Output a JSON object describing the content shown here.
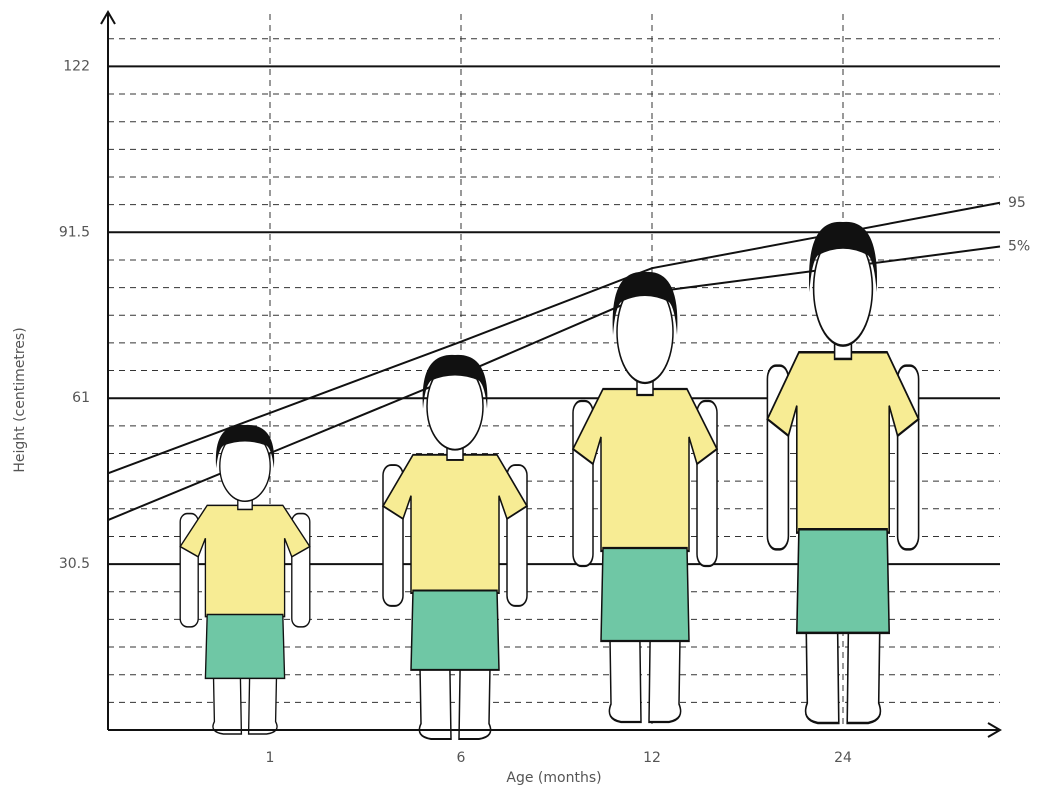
{
  "chart_data": {
    "type": "line",
    "x_label": "Age (months)",
    "y_label": "Height (centimetres)",
    "categories": [
      "1",
      "6",
      "12",
      "24"
    ],
    "series": [
      {
        "name": "95",
        "color": "#111111",
        "values": [
          58.3,
          71.4,
          84.9,
          91.5
        ]
      },
      {
        "name": "5%",
        "color": "#111111",
        "values": [
          50.9,
          65.4,
          80.5,
          85.1
        ]
      }
    ],
    "ylim": [
      0,
      132
    ],
    "yticks": [
      30.5,
      61,
      91.5,
      122
    ],
    "grid": true
  }
}
